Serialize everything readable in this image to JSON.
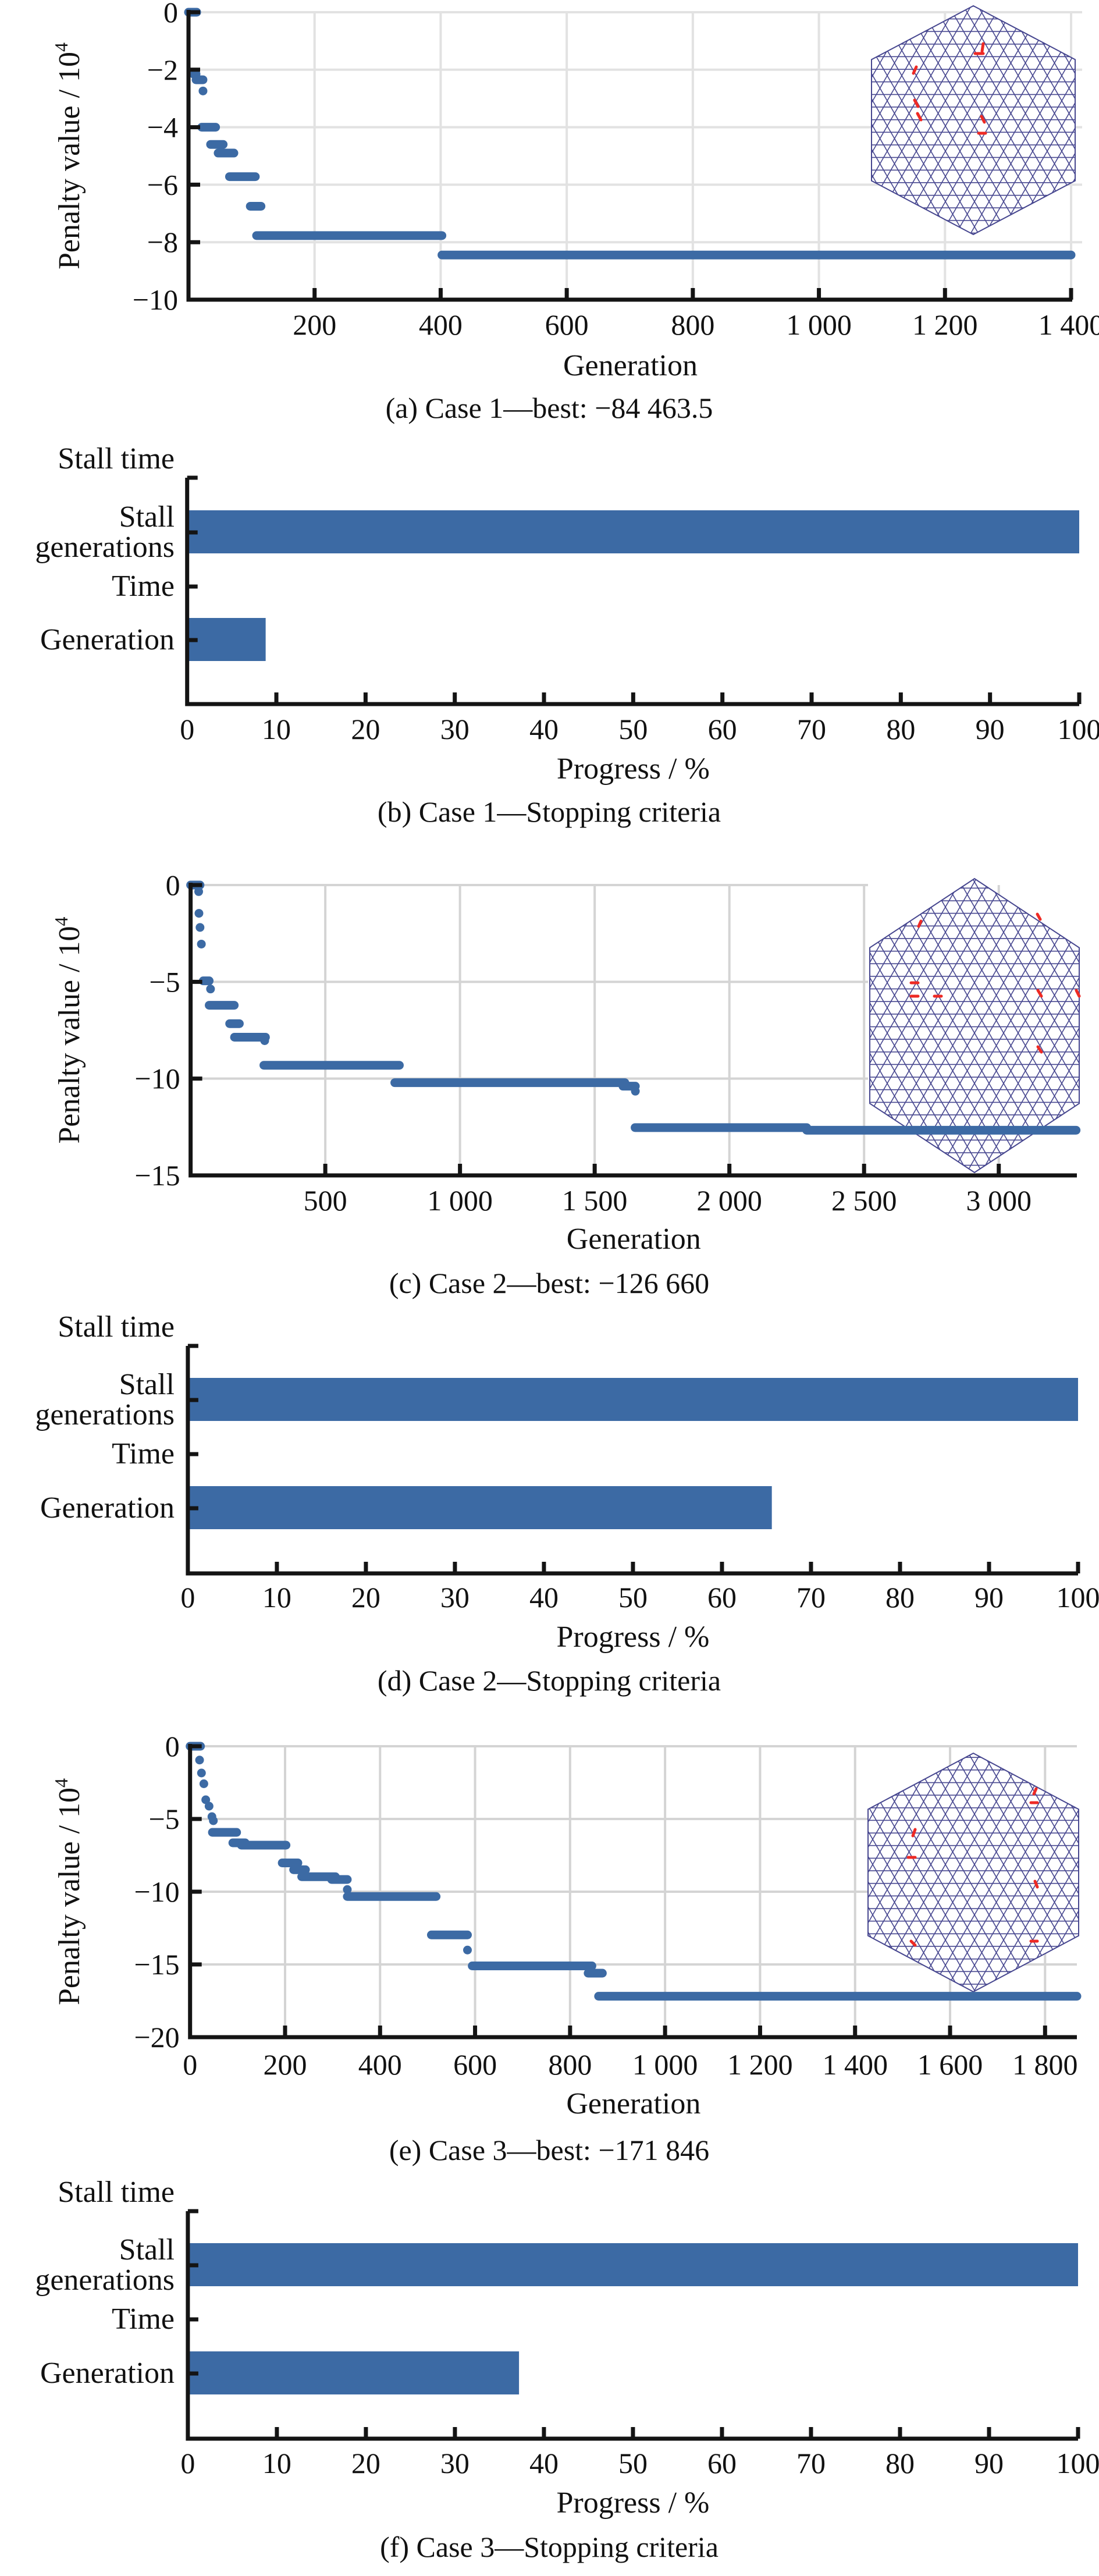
{
  "colors": {
    "series": "#3c6aa4",
    "bar": "#3c6aa4",
    "grid": "#e2e2e2",
    "lattice": "#46468f",
    "defect": "#ee2a24",
    "axis": "#141414"
  },
  "chart_data": [
    {
      "id": "a",
      "type": "scatter",
      "title": "(a) Case 1—best: −84 463.5",
      "xlabel": "Generation",
      "ylabel": "Penalty value / 10",
      "ylabel_sup": "4",
      "xlim": [
        0,
        1400
      ],
      "ylim": [
        -10,
        0
      ],
      "xticks": [
        200,
        400,
        600,
        800,
        1000,
        1200,
        1400
      ],
      "xtick_labels": [
        "200",
        "400",
        "600",
        "800",
        "1 000",
        "1 200",
        "1 400"
      ],
      "yticks": [
        0,
        -2,
        -4,
        -6,
        -8,
        -10
      ],
      "ytick_labels": [
        "0",
        "−2",
        "−4",
        "−6",
        "−8",
        "−10"
      ],
      "grid": true,
      "inset": "hexagonal lattice with red defect edges",
      "segments": [
        {
          "x0": 0,
          "x1": 13,
          "y": 0
        },
        {
          "x0": 8,
          "x1": 12,
          "y": -2.15
        },
        {
          "x0": 12,
          "x1": 23,
          "y": -2.35
        },
        {
          "x0": 23,
          "x1": 23,
          "y": -2.74
        },
        {
          "x0": 21,
          "x1": 43,
          "y": -4.0
        },
        {
          "x0": 35,
          "x1": 55,
          "y": -4.6
        },
        {
          "x0": 47,
          "x1": 72,
          "y": -4.9
        },
        {
          "x0": 65,
          "x1": 106,
          "y": -5.72
        },
        {
          "x0": 98,
          "x1": 115,
          "y": -6.75
        },
        {
          "x0": 108,
          "x1": 402,
          "y": -7.77
        },
        {
          "x0": 402,
          "x1": 1400,
          "y": -8.446
        }
      ]
    },
    {
      "id": "b",
      "type": "bar",
      "orientation": "horizontal",
      "title": "(b) Case 1—Stopping criteria",
      "xlabel": "Progress / %",
      "xlim": [
        0,
        100
      ],
      "xticks": [
        0,
        10,
        20,
        30,
        40,
        50,
        60,
        70,
        80,
        90,
        100
      ],
      "categories": [
        "Generation",
        "Time",
        "Stall generations",
        "Stall time"
      ],
      "category_lines": [
        [
          "Generation"
        ],
        [
          "Time"
        ],
        [
          "Stall",
          "generations"
        ],
        [
          "Stall time"
        ]
      ],
      "values": [
        8.8,
        0,
        100,
        0
      ]
    },
    {
      "id": "c",
      "type": "scatter",
      "title": "(c) Case 2—best: −126 660",
      "xlabel": "Generation",
      "ylabel": "Penalty value / 10",
      "ylabel_sup": "4",
      "xlim": [
        0,
        3290
      ],
      "ylim": [
        -15,
        0
      ],
      "xticks": [
        500,
        1000,
        1500,
        2000,
        2500,
        3000
      ],
      "xtick_labels": [
        "500",
        "1 000",
        "1 500",
        "2 000",
        "2 500",
        "3 000"
      ],
      "yticks": [
        0,
        -5,
        -10,
        -15
      ],
      "ytick_labels": [
        "0",
        "−5",
        "−10",
        "−15"
      ],
      "grid": true,
      "inset": "hexagonal lattice with red defect edges",
      "segments": [
        {
          "x0": 0,
          "x1": 35,
          "y": 0
        },
        {
          "x0": 30,
          "x1": 30,
          "y": -0.34
        },
        {
          "x0": 31,
          "x1": 31,
          "y": -1.46
        },
        {
          "x0": 35,
          "x1": 35,
          "y": -2.19
        },
        {
          "x0": 40,
          "x1": 40,
          "y": -3.05
        },
        {
          "x0": 47,
          "x1": 69,
          "y": -4.95
        },
        {
          "x0": 74,
          "x1": 74,
          "y": -5.37
        },
        {
          "x0": 69,
          "x1": 162,
          "y": -6.21
        },
        {
          "x0": 145,
          "x1": 181,
          "y": -7.16
        },
        {
          "x0": 163,
          "x1": 278,
          "y": -7.86
        },
        {
          "x0": 275,
          "x1": 275,
          "y": -8.04
        },
        {
          "x0": 272,
          "x1": 775,
          "y": -9.31
        },
        {
          "x0": 758,
          "x1": 1612,
          "y": -10.21
        },
        {
          "x0": 1605,
          "x1": 1651,
          "y": -10.39
        },
        {
          "x0": 1651,
          "x1": 1651,
          "y": -10.65
        },
        {
          "x0": 1650,
          "x1": 2287,
          "y": -12.53
        },
        {
          "x0": 2287,
          "x1": 3287,
          "y": -12.666
        }
      ]
    },
    {
      "id": "d",
      "type": "bar",
      "orientation": "horizontal",
      "title": "(d) Case 2—Stopping criteria",
      "xlabel": "Progress / %",
      "xlim": [
        0,
        100
      ],
      "xticks": [
        0,
        10,
        20,
        30,
        40,
        50,
        60,
        70,
        80,
        90,
        100
      ],
      "categories": [
        "Generation",
        "Time",
        "Stall generations",
        "Stall time"
      ],
      "category_lines": [
        [
          "Generation"
        ],
        [
          "Time"
        ],
        [
          "Stall",
          "generations"
        ],
        [
          "Stall time"
        ]
      ],
      "values": [
        65.6,
        0,
        100,
        0
      ]
    },
    {
      "id": "e",
      "type": "scatter",
      "title": "(e) Case 3—best: −171 846",
      "xlabel": "Generation",
      "ylabel": "Penalty value / 10",
      "ylabel_sup": "4",
      "xlim": [
        0,
        1867
      ],
      "ylim": [
        -20,
        0
      ],
      "xticks": [
        0,
        200,
        400,
        600,
        800,
        1000,
        1200,
        1400,
        1600,
        1800
      ],
      "xtick_labels": [
        "0",
        "200",
        "400",
        "600",
        "800",
        "1 000",
        "1 200",
        "1 400",
        "1 600",
        "1 800"
      ],
      "yticks": [
        0,
        -5,
        -10,
        -15,
        -20
      ],
      "ytick_labels": [
        "0",
        "−5",
        "−10",
        "−15",
        "−20"
      ],
      "grid": true,
      "inset": "hexagonal lattice with red defect edges",
      "segments": [
        {
          "x0": 0,
          "x1": 22,
          "y": 0
        },
        {
          "x0": 20,
          "x1": 20,
          "y": -0.95
        },
        {
          "x0": 24,
          "x1": 24,
          "y": -1.84
        },
        {
          "x0": 29,
          "x1": 29,
          "y": -2.58
        },
        {
          "x0": 33,
          "x1": 33,
          "y": -3.68
        },
        {
          "x0": 40,
          "x1": 40,
          "y": -4.12
        },
        {
          "x0": 46,
          "x1": 46,
          "y": -4.84
        },
        {
          "x0": 49,
          "x1": 49,
          "y": -5.12
        },
        {
          "x0": 47,
          "x1": 98,
          "y": -5.92
        },
        {
          "x0": 90,
          "x1": 116,
          "y": -6.64
        },
        {
          "x0": 108,
          "x1": 202,
          "y": -6.8
        },
        {
          "x0": 194,
          "x1": 227,
          "y": -8.02
        },
        {
          "x0": 218,
          "x1": 243,
          "y": -8.49
        },
        {
          "x0": 235,
          "x1": 306,
          "y": -8.97
        },
        {
          "x0": 298,
          "x1": 331,
          "y": -9.16
        },
        {
          "x0": 331,
          "x1": 331,
          "y": -9.85
        },
        {
          "x0": 331,
          "x1": 518,
          "y": -10.33
        },
        {
          "x0": 508,
          "x1": 584,
          "y": -12.97
        },
        {
          "x0": 584,
          "x1": 584,
          "y": -14.01
        },
        {
          "x0": 594,
          "x1": 846,
          "y": -15.1
        },
        {
          "x0": 838,
          "x1": 868,
          "y": -15.6
        },
        {
          "x0": 860,
          "x1": 1867,
          "y": -17.185
        }
      ]
    },
    {
      "id": "f",
      "type": "bar",
      "orientation": "horizontal",
      "title": "(f) Case 3—Stopping criteria",
      "xlabel": "Progress / %",
      "xlim": [
        0,
        100
      ],
      "xticks": [
        0,
        10,
        20,
        30,
        40,
        50,
        60,
        70,
        80,
        90,
        100
      ],
      "categories": [
        "Generation",
        "Time",
        "Stall generations",
        "Stall time"
      ],
      "category_lines": [
        [
          "Generation"
        ],
        [
          "Time"
        ],
        [
          "Stall",
          "generations"
        ],
        [
          "Stall time"
        ]
      ],
      "values": [
        37.2,
        0,
        100,
        0
      ]
    }
  ]
}
